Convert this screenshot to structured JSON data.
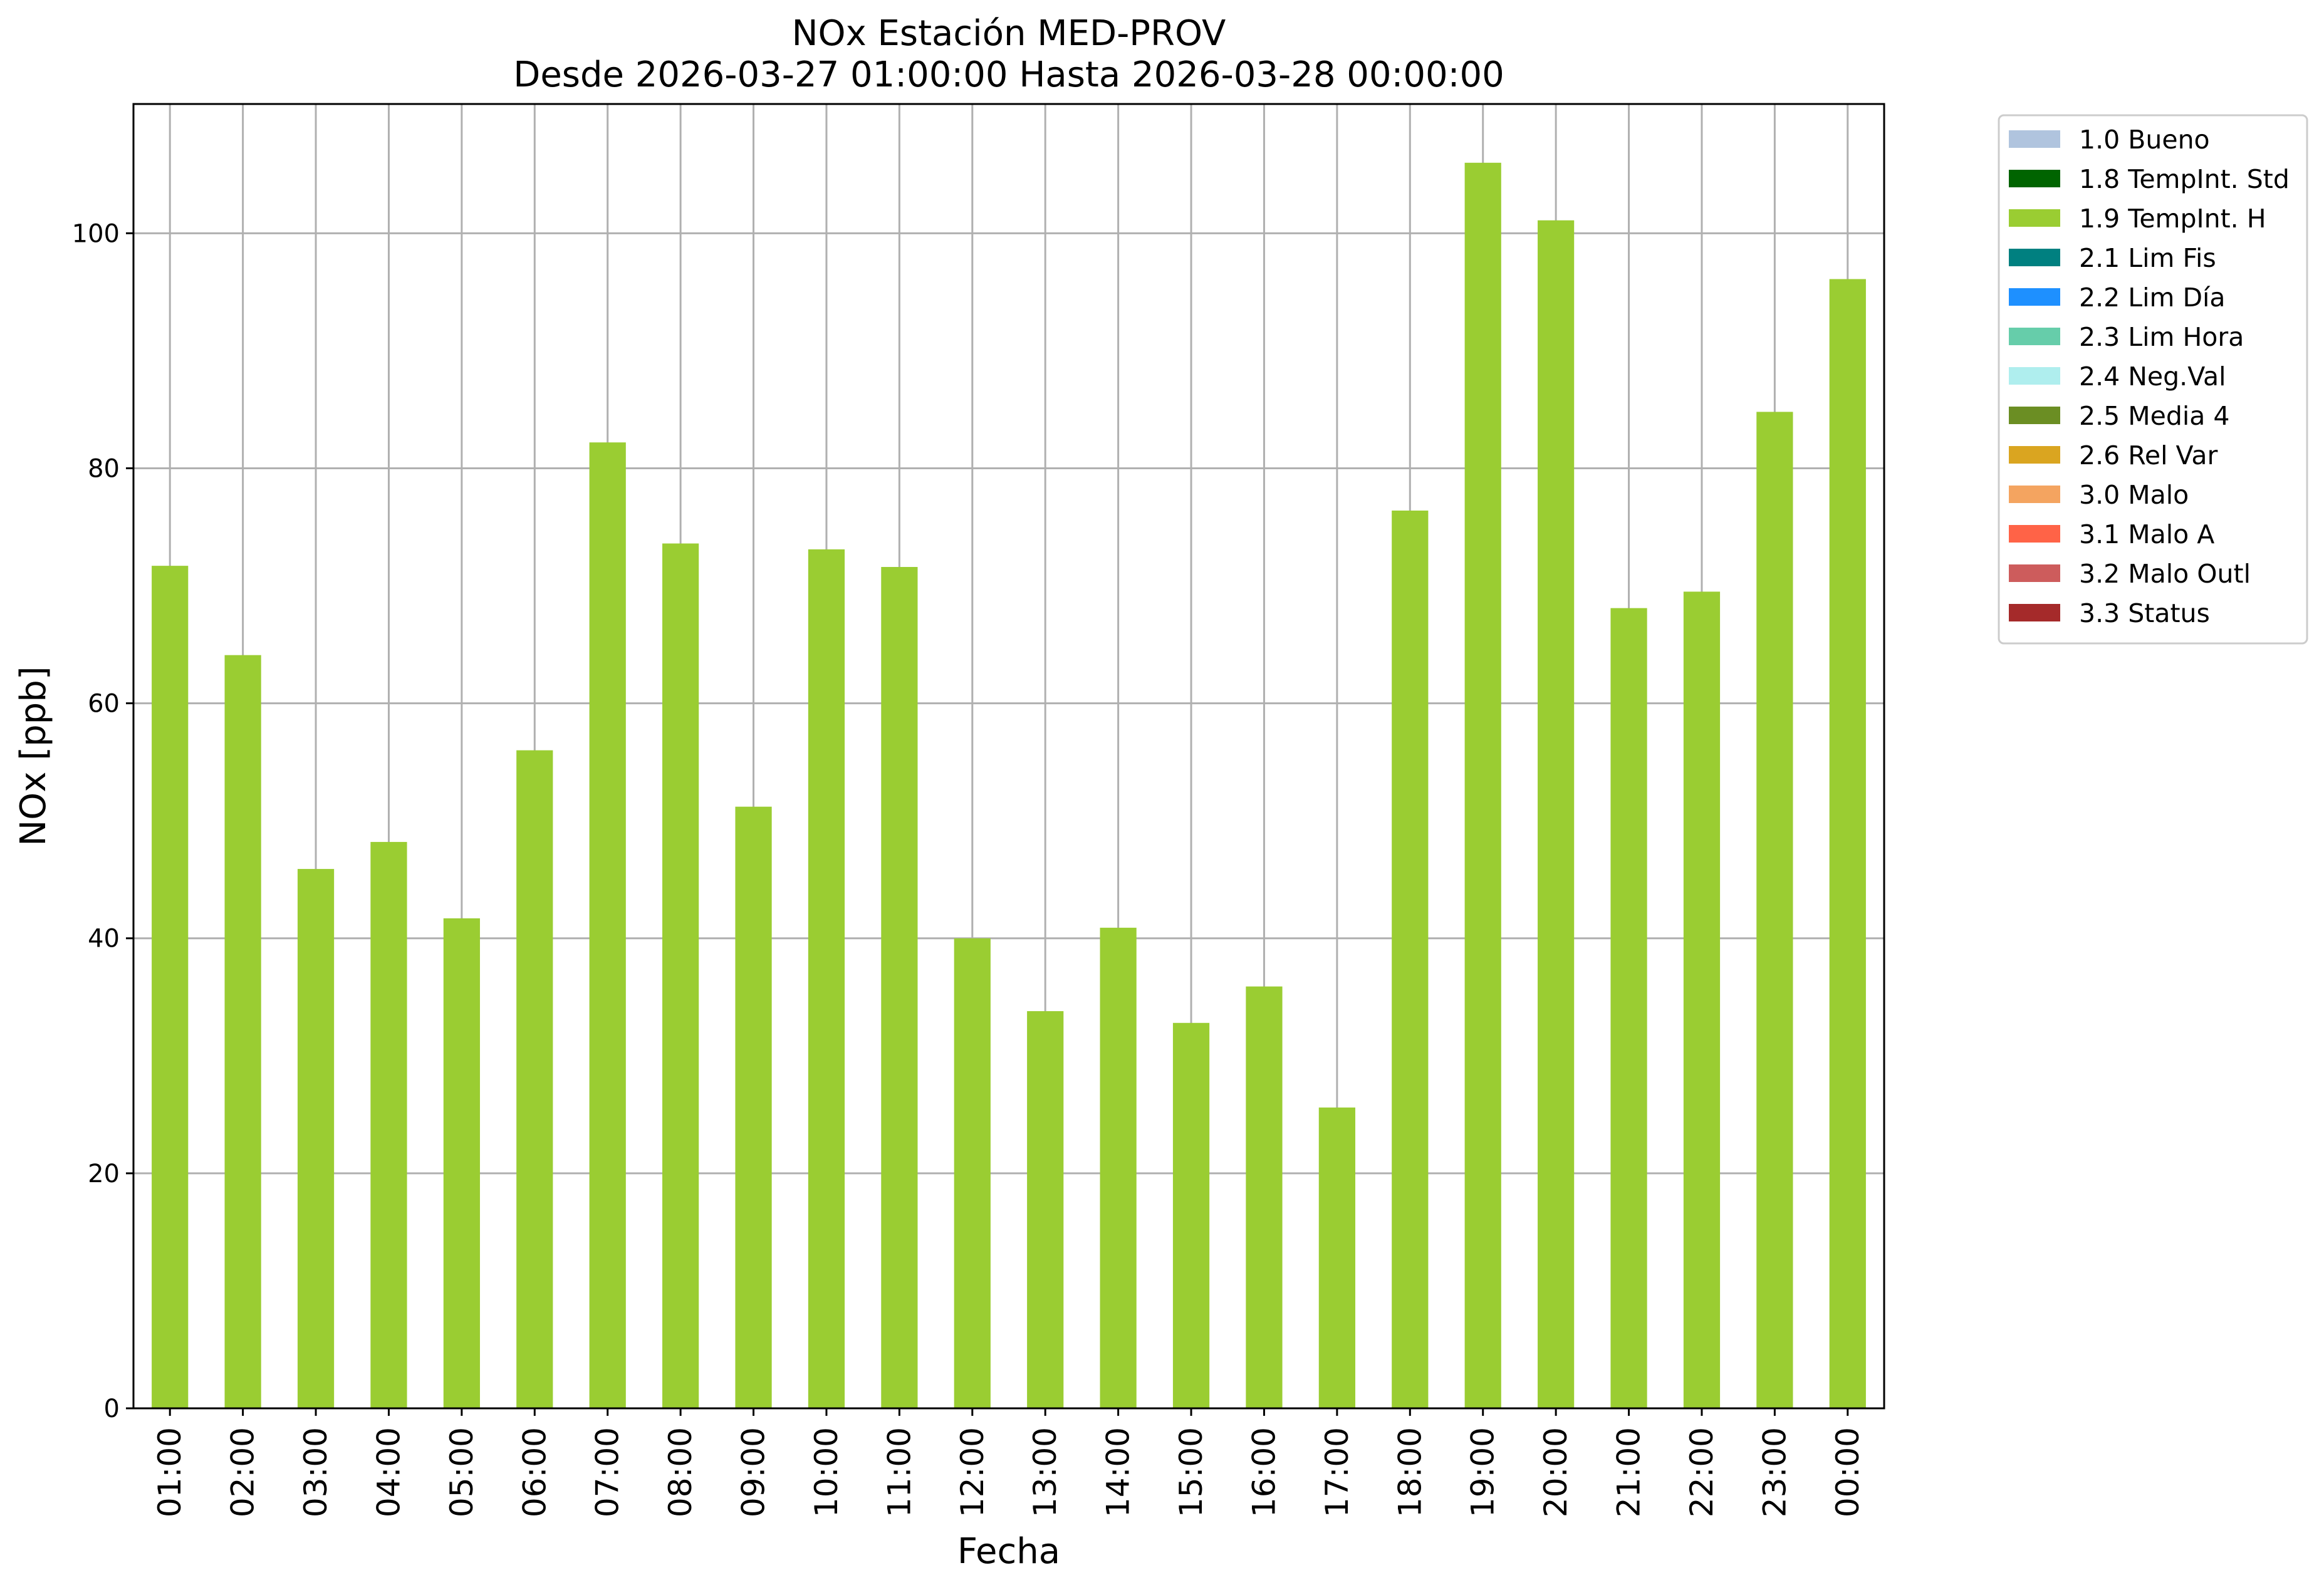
{
  "chart_data": {
    "type": "bar",
    "title": "NOx Estación MED-PROV",
    "subtitle": "Desde 2026-03-27 01:00:00 Hasta 2026-03-28 00:00:00",
    "xlabel": "Fecha",
    "ylabel": "NOx [ppb]",
    "ylim": [
      0,
      111
    ],
    "yticks": [
      0,
      20,
      40,
      60,
      80,
      100
    ],
    "grid": true,
    "legend_position": "outside-top-right",
    "categories": [
      "01:00",
      "02:00",
      "03:00",
      "04:00",
      "05:00",
      "06:00",
      "07:00",
      "08:00",
      "09:00",
      "10:00",
      "11:00",
      "12:00",
      "13:00",
      "14:00",
      "15:00",
      "16:00",
      "17:00",
      "18:00",
      "19:00",
      "20:00",
      "21:00",
      "22:00",
      "23:00",
      "00:00"
    ],
    "series": [
      {
        "name": "1.9 TempInt. H",
        "color": "#9acd32",
        "values": [
          71.7,
          64.1,
          45.9,
          48.2,
          41.7,
          56.0,
          82.2,
          73.6,
          51.2,
          73.1,
          71.6,
          40.0,
          33.8,
          40.9,
          32.8,
          35.9,
          25.6,
          76.4,
          106.0,
          101.1,
          68.1,
          69.5,
          84.8,
          96.1
        ]
      }
    ],
    "legend": [
      {
        "label": "1.0 Bueno",
        "color": "#b0c4de"
      },
      {
        "label": "1.8 TempInt. Std",
        "color": "#006400"
      },
      {
        "label": "1.9 TempInt. H",
        "color": "#9acd32"
      },
      {
        "label": "2.1 Lim Fis",
        "color": "#008080"
      },
      {
        "label": "2.2 Lim Día",
        "color": "#1e90ff"
      },
      {
        "label": "2.3 Lim Hora",
        "color": "#66cdaa"
      },
      {
        "label": "2.4 Neg.Val",
        "color": "#afeeee"
      },
      {
        "label": "2.5 Media 4",
        "color": "#6b8e23"
      },
      {
        "label": "2.6 Rel Var",
        "color": "#daa520"
      },
      {
        "label": "3.0 Malo",
        "color": "#f4a460"
      },
      {
        "label": "3.1 Malo A",
        "color": "#ff6347"
      },
      {
        "label": "3.2 Malo Outl",
        "color": "#cd5c5c"
      },
      {
        "label": "3.3 Status",
        "color": "#a52a2a"
      }
    ]
  }
}
